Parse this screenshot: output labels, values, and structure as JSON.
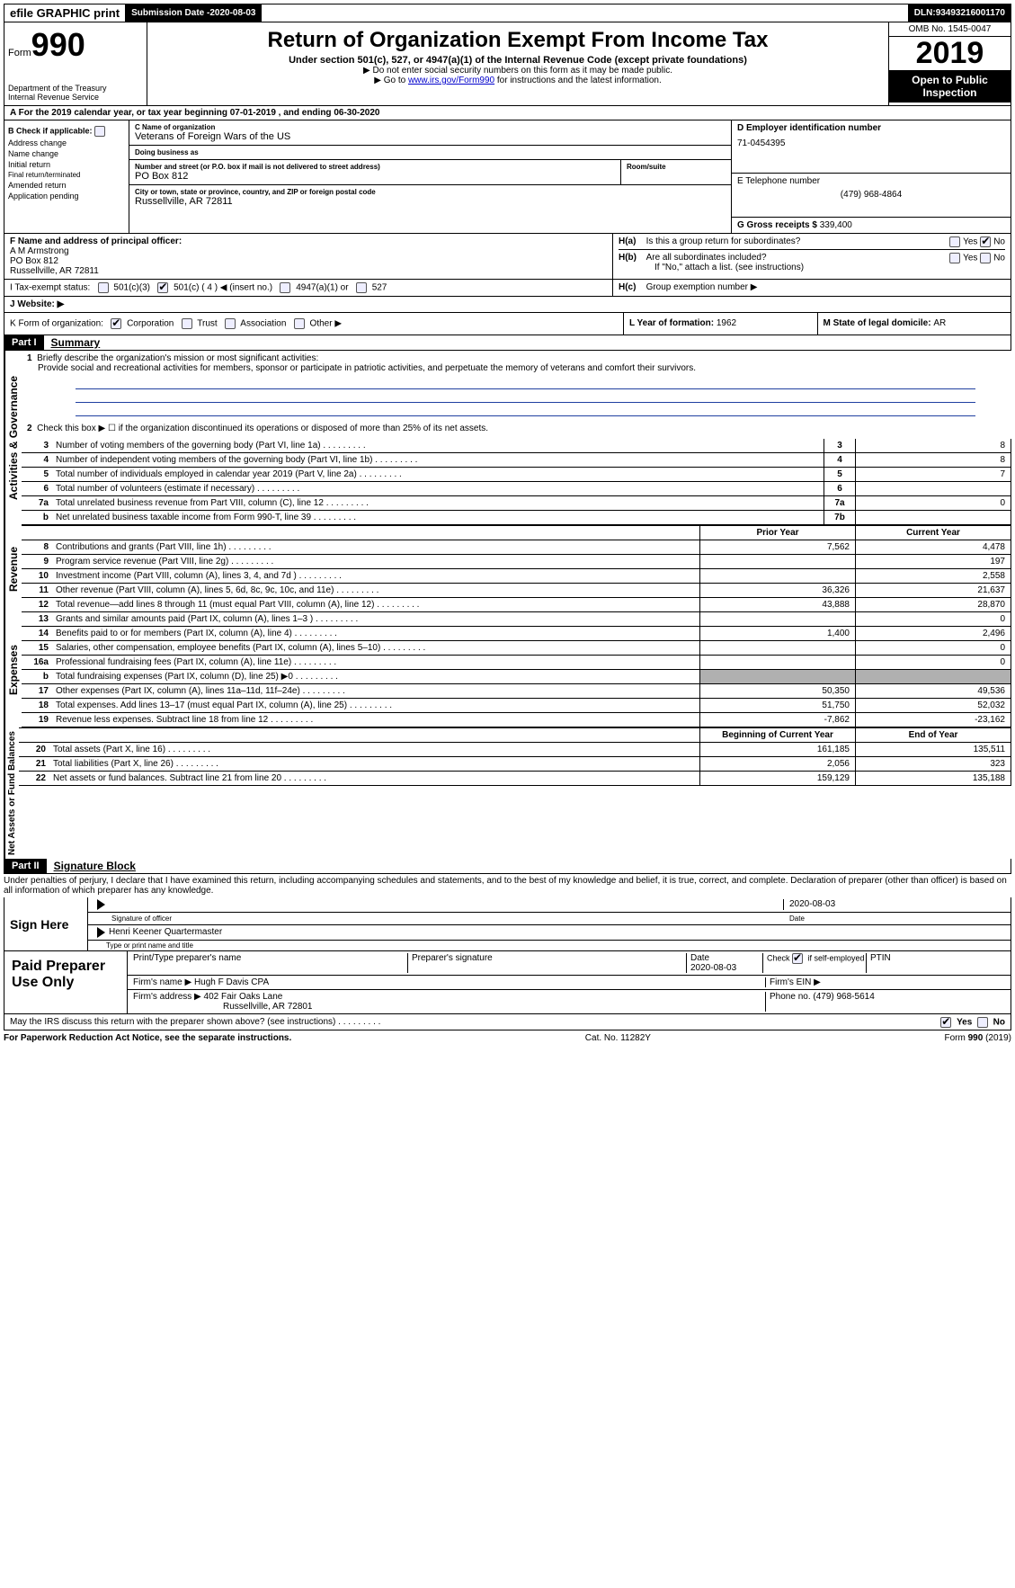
{
  "topbar": {
    "efile": "efile GRAPHIC print",
    "submission_label": "Submission Date - ",
    "submission_date": "2020-08-03",
    "dln_label": "DLN: ",
    "dln": "93493216001170"
  },
  "header": {
    "form_prefix": "Form",
    "form_number": "990",
    "dept1": "Department of the Treasury",
    "dept2": "Internal Revenue Service",
    "title": "Return of Organization Exempt From Income Tax",
    "subtitle": "Under section 501(c), 527, or 4947(a)(1) of the Internal Revenue Code (except private foundations)",
    "note1": "▶ Do not enter social security numbers on this form as it may be made public.",
    "note2_pre": "▶ Go to ",
    "note2_link": "www.irs.gov/Form990",
    "note2_post": " for instructions and the latest information.",
    "omb": "OMB No. 1545-0047",
    "year": "2019",
    "open": "Open to Public Inspection"
  },
  "lineA": "A   For the 2019 calendar year, or tax year beginning 07-01-2019        , and ending 06-30-2020",
  "colB": {
    "heading": "B Check if applicable:",
    "items": [
      "Address change",
      "Name change",
      "Initial return",
      "Final return/terminated",
      "Amended return",
      "Application pending"
    ]
  },
  "colC": {
    "name_label": "C Name of organization",
    "name": "Veterans of Foreign Wars of the US",
    "dba_label": "Doing business as",
    "dba": "",
    "street_label": "Number and street (or P.O. box if mail is not delivered to street address)",
    "street": "PO Box 812",
    "room_label": "Room/suite",
    "city_label": "City or town, state or province, country, and ZIP or foreign postal code",
    "city": "Russellville, AR   72811"
  },
  "colDE": {
    "d_label": "D Employer identification number",
    "d_val": "71-0454395",
    "e_label": "E Telephone number",
    "e_val": "(479) 968-4864",
    "g_label": "G Gross receipts $ ",
    "g_val": "339,400"
  },
  "rowF": {
    "f_label": "F  Name and address of principal officer:",
    "f_name": "A M Armstrong",
    "f_addr1": "PO Box 812",
    "f_addr2": "Russellville, AR   72811"
  },
  "rowH": {
    "ha_label": "H(a)",
    "ha_text": "Is this a group return for subordinates?",
    "hb_label": "H(b)",
    "hb_text": "Are all subordinates included?",
    "hb_note": "If \"No,\" attach a list. (see instructions)",
    "hc_label": "H(c)",
    "hc_text": "Group exemption number ▶",
    "yes": "Yes",
    "no": "No"
  },
  "rowI": {
    "label": "I      Tax-exempt status:",
    "opt1": "501(c)(3)",
    "opt2_pre": "501(c) ( ",
    "opt2_num": "4",
    "opt2_post": " ) ◀ (insert no.)",
    "opt3": "4947(a)(1) or",
    "opt4": "527"
  },
  "rowJ": "J    Website: ▶",
  "rowK": {
    "label": "K Form of organization:",
    "opts": [
      "Corporation",
      "Trust",
      "Association",
      "Other ▶"
    ]
  },
  "rowL": {
    "label": "L Year of formation: ",
    "val": "1962"
  },
  "rowM": {
    "label": "M State of legal domicile: ",
    "val": "AR"
  },
  "part1": {
    "tag": "Part I",
    "title": "Summary",
    "q1_label": "1",
    "q1": "Briefly describe the organization's mission or most significant activities:",
    "q1_text": "Provide social and recreational activities for members, sponsor or participate in patriotic activities, and perpetuate the memory of veterans and comfort their survivors.",
    "q2": "Check this box ▶ ☐  if the organization discontinued its operations or disposed of more than 25% of its net assets.",
    "sideA": "Activities & Governance",
    "sideR": "Revenue",
    "sideE": "Expenses",
    "sideN": "Net Assets or Fund Balances",
    "col_prior": "Prior Year",
    "col_current": "Current Year",
    "col_begin": "Beginning of Current Year",
    "col_end": "End of Year"
  },
  "gov_rows": [
    {
      "n": "3",
      "d": "Number of voting members of the governing body (Part VI, line 1a)",
      "b": "3",
      "a": "8"
    },
    {
      "n": "4",
      "d": "Number of independent voting members of the governing body (Part VI, line 1b)",
      "b": "4",
      "a": "8"
    },
    {
      "n": "5",
      "d": "Total number of individuals employed in calendar year 2019 (Part V, line 2a)",
      "b": "5",
      "a": "7"
    },
    {
      "n": "6",
      "d": "Total number of volunteers (estimate if necessary)",
      "b": "6",
      "a": ""
    },
    {
      "n": "7a",
      "d": "Total unrelated business revenue from Part VIII, column (C), line 12",
      "b": "7a",
      "a": "0"
    },
    {
      "n": "b",
      "d": "Net unrelated business taxable income from Form 990-T, line 39",
      "b": "7b",
      "a": ""
    }
  ],
  "rev_rows": [
    {
      "n": "8",
      "d": "Contributions and grants (Part VIII, line 1h)",
      "p": "7,562",
      "c": "4,478"
    },
    {
      "n": "9",
      "d": "Program service revenue (Part VIII, line 2g)",
      "p": "",
      "c": "197"
    },
    {
      "n": "10",
      "d": "Investment income (Part VIII, column (A), lines 3, 4, and 7d )",
      "p": "",
      "c": "2,558"
    },
    {
      "n": "11",
      "d": "Other revenue (Part VIII, column (A), lines 5, 6d, 8c, 9c, 10c, and 11e)",
      "p": "36,326",
      "c": "21,637"
    },
    {
      "n": "12",
      "d": "Total revenue—add lines 8 through 11 (must equal Part VIII, column (A), line 12)",
      "p": "43,888",
      "c": "28,870"
    }
  ],
  "exp_rows": [
    {
      "n": "13",
      "d": "Grants and similar amounts paid (Part IX, column (A), lines 1–3 )",
      "p": "",
      "c": "0"
    },
    {
      "n": "14",
      "d": "Benefits paid to or for members (Part IX, column (A), line 4)",
      "p": "1,400",
      "c": "2,496"
    },
    {
      "n": "15",
      "d": "Salaries, other compensation, employee benefits (Part IX, column (A), lines 5–10)",
      "p": "",
      "c": "0"
    },
    {
      "n": "16a",
      "d": "Professional fundraising fees (Part IX, column (A), line 11e)",
      "p": "",
      "c": "0"
    },
    {
      "n": "b",
      "d": "Total fundraising expenses (Part IX, column (D), line 25) ▶0",
      "p": "shade",
      "c": "shade"
    },
    {
      "n": "17",
      "d": "Other expenses (Part IX, column (A), lines 11a–11d, 11f–24e)",
      "p": "50,350",
      "c": "49,536"
    },
    {
      "n": "18",
      "d": "Total expenses. Add lines 13–17 (must equal Part IX, column (A), line 25)",
      "p": "51,750",
      "c": "52,032"
    },
    {
      "n": "19",
      "d": "Revenue less expenses. Subtract line 18 from line 12",
      "p": "-7,862",
      "c": "-23,162"
    }
  ],
  "net_rows": [
    {
      "n": "20",
      "d": "Total assets (Part X, line 16)",
      "p": "161,185",
      "c": "135,511"
    },
    {
      "n": "21",
      "d": "Total liabilities (Part X, line 26)",
      "p": "2,056",
      "c": "323"
    },
    {
      "n": "22",
      "d": "Net assets or fund balances. Subtract line 21 from line 20",
      "p": "159,129",
      "c": "135,188"
    }
  ],
  "part2": {
    "tag": "Part II",
    "title": "Signature Block",
    "penalty": "Under penalties of perjury, I declare that I have examined this return, including accompanying schedules and statements, and to the best of my knowledge and belief, it is true, correct, and complete. Declaration of preparer (other than officer) is based on all information of which preparer has any knowledge."
  },
  "sign": {
    "here": "Sign Here",
    "sig_officer": "Signature of officer",
    "date": "2020-08-03",
    "date_lbl": "Date",
    "name": "Henri Keener  Quartermaster",
    "name_lbl": "Type or print name and title"
  },
  "paid": {
    "label": "Paid Preparer Use Only",
    "col1": "Print/Type preparer's name",
    "col2": "Preparer's signature",
    "col3_lbl": "Date",
    "col3": "2020-08-03",
    "col4_lbl": "Check ☑ if self-employed",
    "col5": "PTIN",
    "firm_name_lbl": "Firm's name     ▶ ",
    "firm_name": "Hugh F Davis CPA",
    "firm_ein": "Firm's EIN ▶",
    "firm_addr_lbl": "Firm's address ▶ ",
    "firm_addr1": "402 Fair Oaks Lane",
    "firm_addr2": "Russellville, AR   72801",
    "phone_lbl": "Phone no. ",
    "phone": "(479) 968-5614"
  },
  "discuss": "May the IRS discuss this return with the preparer shown above? (see instructions)",
  "footer": {
    "left": "For Paperwork Reduction Act Notice, see the separate instructions.",
    "mid": "Cat. No. 11282Y",
    "right": "Form 990 (2019)"
  },
  "colors": {
    "link": "#0000cc",
    "black": "#000000",
    "shade": "#b0b0b0",
    "rule": "#2040a0"
  }
}
